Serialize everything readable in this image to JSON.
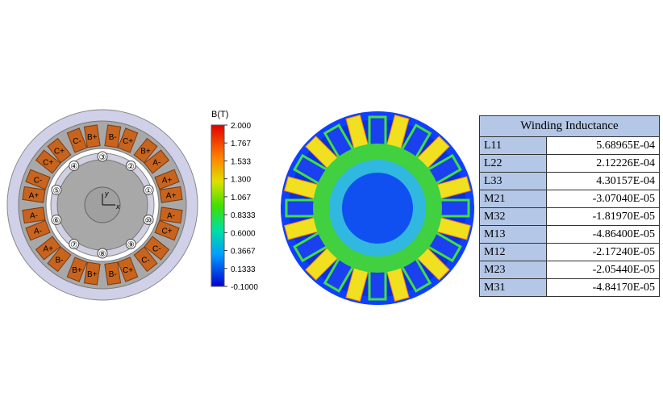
{
  "motor": {
    "coils": [
      "C-",
      "B+",
      "B-",
      "C+",
      "B+",
      "A-",
      "A+",
      "A+",
      "A-",
      "C+",
      "C-",
      "C-",
      "C+",
      "B-",
      "B+",
      "B+",
      "B-",
      "A+",
      "A-",
      "A-",
      "A+",
      "C-",
      "C+",
      "C+"
    ],
    "slots": [
      "①",
      "②",
      "③",
      "④",
      "⑤",
      "⑥",
      "⑦",
      "⑧",
      "⑨",
      "⑩"
    ],
    "x_axis": "x",
    "y_axis": "y"
  },
  "colorbar": {
    "title": "B(T)",
    "labels": [
      "2.000",
      "1.767",
      "1.533",
      "1.300",
      "1.067",
      "0.8333",
      "0.6000",
      "0.3667",
      "0.1333",
      "-0.1000"
    ]
  },
  "table": {
    "title": "Winding Inductance",
    "rows": [
      [
        "L11",
        "5.68965E-04"
      ],
      [
        "L22",
        "2.12226E-04"
      ],
      [
        "L33",
        "4.30157E-04"
      ],
      [
        "M21",
        "-3.07040E-05"
      ],
      [
        "M32",
        "-1.81970E-05"
      ],
      [
        "M13",
        "-4.86400E-05"
      ],
      [
        "M12",
        "-2.17240E-05"
      ],
      [
        "M23",
        "-2.05440E-05"
      ],
      [
        "M31",
        "-4.84170E-05"
      ]
    ]
  }
}
